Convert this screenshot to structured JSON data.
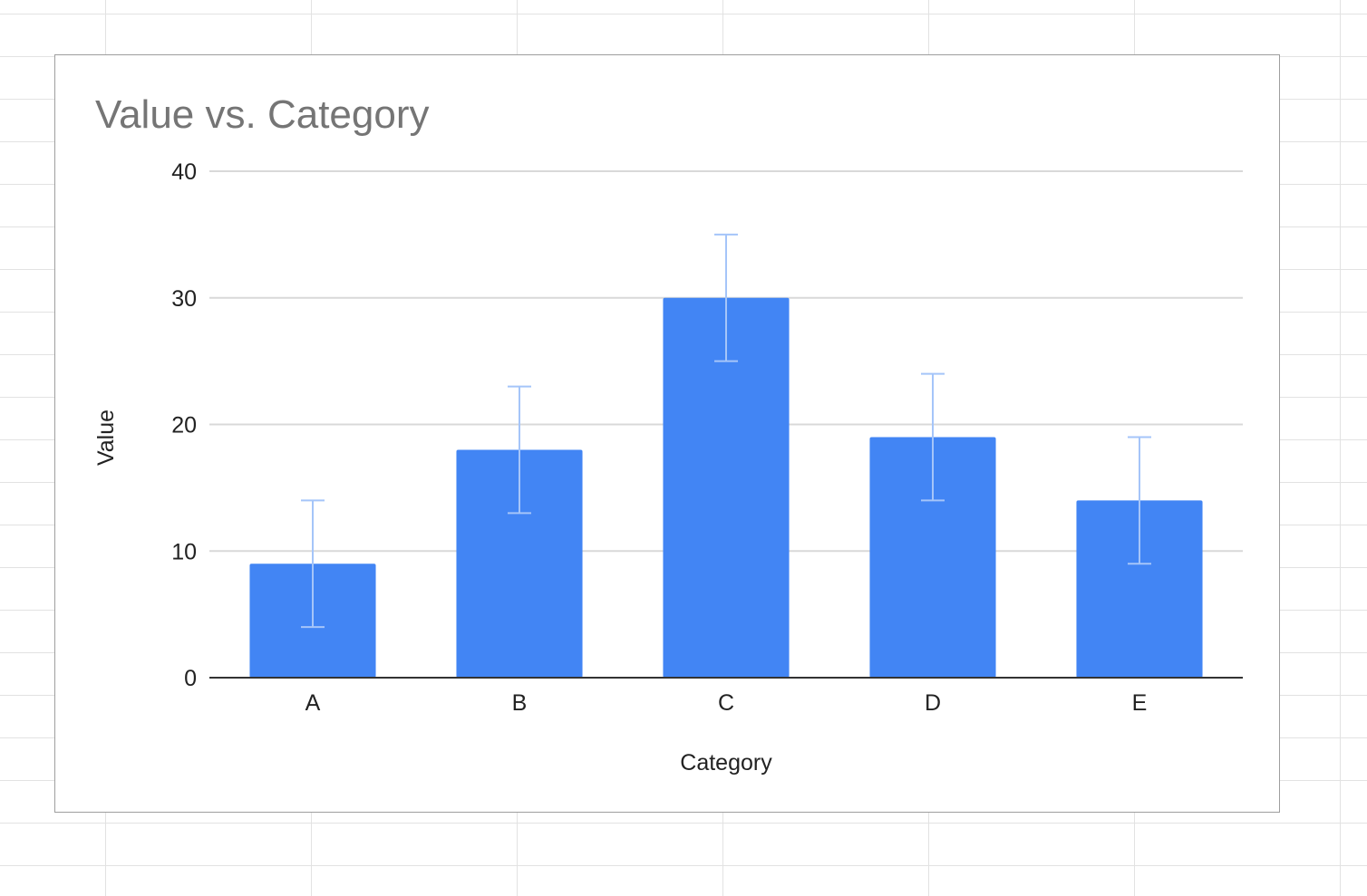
{
  "chart_data": {
    "type": "bar",
    "title": "Value vs. Category",
    "xlabel": "Category",
    "ylabel": "Value",
    "categories": [
      "A",
      "B",
      "C",
      "D",
      "E"
    ],
    "values": [
      9,
      18,
      30,
      19,
      14
    ],
    "error_bars": [
      {
        "low": 4,
        "high": 14
      },
      {
        "low": 13,
        "high": 23
      },
      {
        "low": 25,
        "high": 35
      },
      {
        "low": 14,
        "high": 24
      },
      {
        "low": 9,
        "high": 19
      }
    ],
    "ylim": [
      0,
      40
    ],
    "yticks": [
      0,
      10,
      20,
      30,
      40
    ],
    "grid": true,
    "legend": "none",
    "colors": {
      "bar": "#4285f4",
      "error_bar": "#a5c5f9",
      "grid": "#d9d9d9",
      "axis": "#333333",
      "title": "#757575",
      "text": "#222222"
    }
  }
}
